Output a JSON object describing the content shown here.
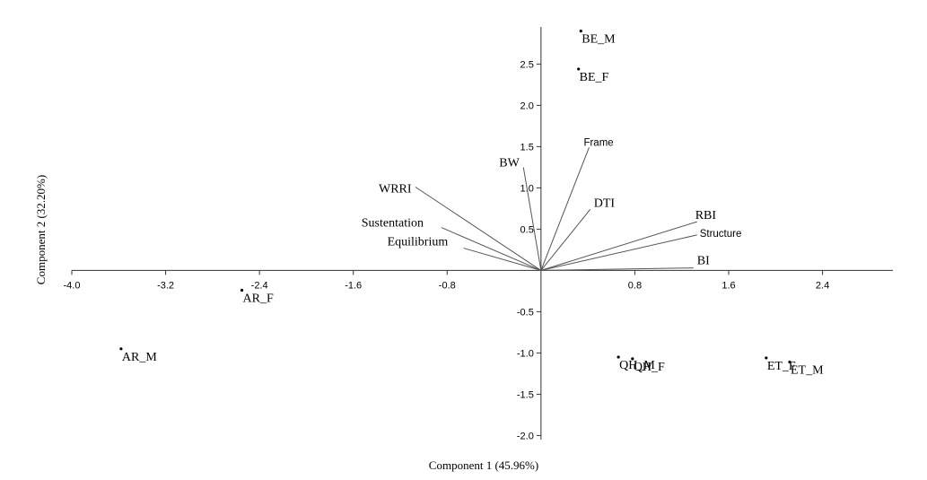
{
  "chart_data": {
    "type": "scatter",
    "subtype": "biplot",
    "xlabel": "Component 1 (45.96%)",
    "ylabel": "Component 2 (32.20%)",
    "xlim": [
      -4.0,
      3.0
    ],
    "ylim": [
      -2.05,
      2.95
    ],
    "x_ticks": [
      {
        "value": -4.0,
        "label": "-4.0"
      },
      {
        "value": -3.2,
        "label": "-3.2"
      },
      {
        "value": -2.4,
        "label": "-2.4"
      },
      {
        "value": -1.6,
        "label": "-1.6"
      },
      {
        "value": -0.8,
        "label": "-0.8"
      },
      {
        "value": 0.8,
        "label": "0.8"
      },
      {
        "value": 1.6,
        "label": "1.6"
      },
      {
        "value": 2.4,
        "label": "2.4"
      }
    ],
    "y_ticks": [
      {
        "value": 2.5,
        "label": "2.5"
      },
      {
        "value": 2.0,
        "label": "2.0"
      },
      {
        "value": 1.5,
        "label": "1.5"
      },
      {
        "value": 1.0,
        "label": "1.0"
      },
      {
        "value": 0.5,
        "label": "0.5"
      },
      {
        "value": -0.5,
        "label": "-0.5"
      },
      {
        "value": -1.0,
        "label": "-1.0"
      },
      {
        "value": -1.5,
        "label": "-1.5"
      },
      {
        "value": -2.0,
        "label": "-2.0"
      }
    ],
    "points": [
      {
        "label": "BE_M",
        "x": 0.34,
        "y": 2.9
      },
      {
        "label": "BE_F",
        "x": 0.32,
        "y": 2.44
      },
      {
        "label": "AR_F",
        "x": -2.55,
        "y": -0.24
      },
      {
        "label": "AR_M",
        "x": -3.58,
        "y": -0.95
      },
      {
        "label": "QH_M",
        "x": 0.66,
        "y": -1.05
      },
      {
        "label": "QH_F",
        "x": 0.78,
        "y": -1.07
      },
      {
        "label": "ET_F",
        "x": 1.92,
        "y": -1.06
      },
      {
        "label": "ET_M",
        "x": 2.12,
        "y": -1.11
      }
    ],
    "loadings": [
      {
        "label": "Frame",
        "x": 0.41,
        "y": 1.49
      },
      {
        "label": "BW",
        "x": -0.15,
        "y": 1.25
      },
      {
        "label": "WRRI",
        "x": -1.07,
        "y": 1.01
      },
      {
        "label": "Sustentation",
        "x": -0.85,
        "y": 0.52
      },
      {
        "label": "Equilibrium",
        "x": -0.66,
        "y": 0.27
      },
      {
        "label": "DTI",
        "x": 0.42,
        "y": 0.74
      },
      {
        "label": "RBI",
        "x": 1.33,
        "y": 0.59
      },
      {
        "label": "Structure",
        "x": 1.33,
        "y": 0.43
      },
      {
        "label": "BI",
        "x": 1.3,
        "y": 0.03
      }
    ],
    "grid": false,
    "legend": "none"
  }
}
